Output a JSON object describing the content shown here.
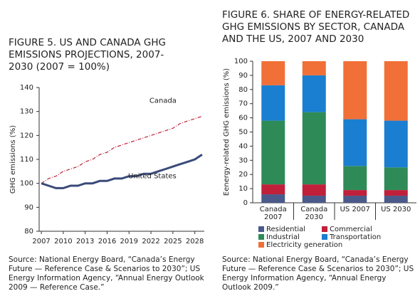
{
  "chart_data": [
    {
      "type": "line",
      "title": "FIGURE 5. US AND CANADA GHG EMISSIONS PROJECTIONS, 2007-2030 (2007 = 100%)",
      "y_label": "GHG emissions (%)",
      "source": "Source: National Energy Board, “Canada’s Energy Future — Reference Case & Scenarios to 2030”; US Energy Information Agency, “Annual Energy Outlook 2009 — Reference Case.”",
      "x": [
        2007,
        2008,
        2009,
        2010,
        2011,
        2012,
        2013,
        2014,
        2015,
        2016,
        2017,
        2018,
        2019,
        2020,
        2021,
        2022,
        2023,
        2024,
        2025,
        2026,
        2027,
        2028,
        2029
      ],
      "series": [
        {
          "name": "Canada",
          "color": "#c0203a",
          "dashed": true,
          "values": [
            100,
            102,
            103,
            105,
            106,
            107,
            109,
            110,
            112,
            113,
            115,
            116,
            117,
            118,
            119,
            120,
            121,
            122,
            123,
            125,
            126,
            127,
            128
          ]
        },
        {
          "name": "United States",
          "color": "#3a4a7a",
          "dashed": false,
          "values": [
            100,
            99,
            98,
            98,
            99,
            99,
            100,
            100,
            101,
            101,
            102,
            102,
            103,
            103,
            104,
            104,
            105,
            106,
            107,
            108,
            109,
            110,
            112
          ]
        }
      ],
      "xlim": [
        2006.7,
        2029.3
      ],
      "xticks": [
        2007,
        2010,
        2013,
        2016,
        2019,
        2022,
        2025,
        2028
      ],
      "ylim": [
        80,
        140
      ],
      "yticks": [
        80,
        90,
        100,
        110,
        120,
        130,
        140
      ]
    },
    {
      "type": "bar",
      "stacked": true,
      "title": "FIGURE 6. SHARE OF ENERGY-RELATED GHG EMISSIONS BY SECTOR, CANADA AND THE US, 2007 AND 2030",
      "y_label": "Eenergy-related GHG emissions (%)",
      "source": "Source: National Energy Board, “Canada’s Energy Future — Reference Case & Scenarios to 2030”; US Energy Information Agency, “Annual Energy Outlook 2009.”",
      "categories": [
        "Canada 2007",
        "Canada 2030",
        "US 2007",
        "US 2030"
      ],
      "series": [
        {
          "name": "Residential",
          "color": "#4a5a8a",
          "values": [
            6,
            5,
            5,
            5
          ]
        },
        {
          "name": "Commercial",
          "color": "#c0203a",
          "values": [
            7,
            8,
            4,
            4
          ]
        },
        {
          "name": "Industrial",
          "color": "#2e8b57",
          "values": [
            45,
            51,
            17,
            16
          ]
        },
        {
          "name": "Transportation",
          "color": "#1a7fd0",
          "values": [
            25,
            26,
            33,
            33
          ]
        },
        {
          "name": "Electricity generation",
          "color": "#f07038",
          "values": [
            17,
            10,
            41,
            42
          ]
        }
      ],
      "ylim": [
        0,
        100
      ],
      "yticks": [
        0,
        10,
        20,
        30,
        40,
        50,
        60,
        70,
        80,
        90,
        100
      ]
    }
  ]
}
